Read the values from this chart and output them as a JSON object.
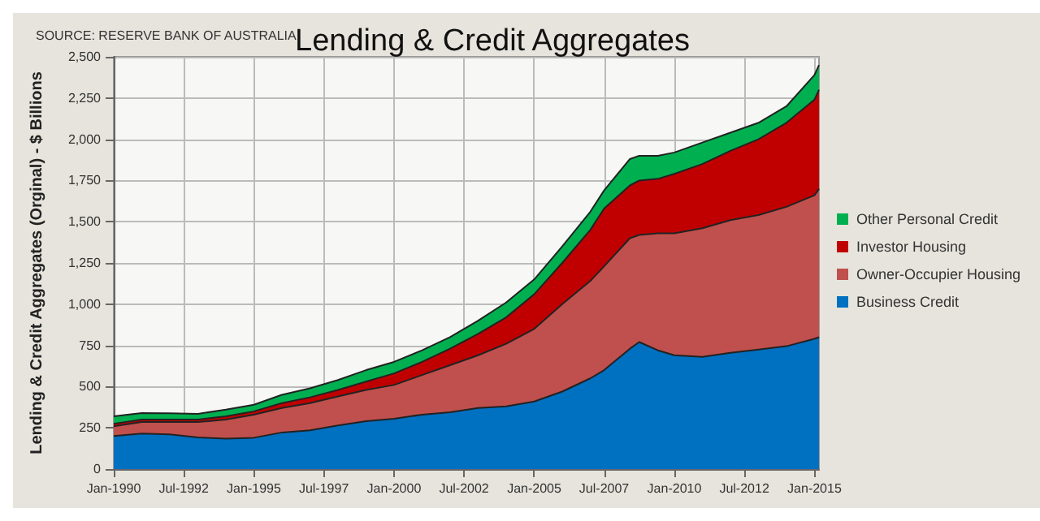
{
  "chart_data": {
    "type": "area",
    "title": "Lending & Credit Aggregates",
    "ylabel": "Lending & Credit Aggregates (Orginal) - $ Billions",
    "annotations": [
      "SOURCE: RESERVE BANK OF AUSTRALIA"
    ],
    "x": [
      "1990-01",
      "1991-01",
      "1992-01",
      "1993-01",
      "1994-01",
      "1995-01",
      "1996-01",
      "1997-01",
      "1998-01",
      "1999-01",
      "2000-01",
      "2001-01",
      "2002-01",
      "2003-01",
      "2004-01",
      "2005-01",
      "2006-01",
      "2007-01",
      "2007-07",
      "2008-06",
      "2008-10",
      "2009-06",
      "2010-01",
      "2011-01",
      "2012-01",
      "2013-01",
      "2014-01",
      "2015-01",
      "2015-03"
    ],
    "stacked": true,
    "series": [
      {
        "name": "Business Credit",
        "color": "#0070c0",
        "values": [
          200,
          215,
          210,
          192,
          185,
          190,
          222,
          235,
          265,
          290,
          305,
          330,
          345,
          370,
          380,
          410,
          470,
          550,
          600,
          730,
          770,
          720,
          690,
          680,
          705,
          725,
          745,
          790,
          800
        ]
      },
      {
        "name": "Owner-Occupier Housing",
        "color": "#c0504d",
        "values": [
          60,
          70,
          75,
          93,
          115,
          140,
          148,
          165,
          175,
          190,
          205,
          240,
          285,
          320,
          380,
          440,
          530,
          590,
          630,
          670,
          650,
          710,
          740,
          780,
          805,
          815,
          845,
          870,
          900
        ]
      },
      {
        "name": "Investor Housing",
        "color": "#c00000",
        "values": [
          15,
          15,
          15,
          15,
          20,
          20,
          30,
          35,
          40,
          50,
          70,
          80,
          100,
          130,
          160,
          210,
          250,
          310,
          350,
          320,
          330,
          330,
          360,
          390,
          420,
          460,
          510,
          580,
          600
        ]
      },
      {
        "name": "Other Personal Credit",
        "color": "#00b050",
        "values": [
          45,
          40,
          38,
          35,
          40,
          40,
          50,
          55,
          60,
          70,
          70,
          70,
          70,
          80,
          90,
          90,
          100,
          110,
          110,
          160,
          150,
          140,
          130,
          130,
          110,
          100,
          100,
          150,
          150
        ]
      }
    ],
    "xlim": [
      "1990-01",
      "2015-03"
    ],
    "xticks": [
      {
        "value": "1990-01",
        "label": "Jan-1990"
      },
      {
        "value": "1992-07",
        "label": "Jul-1992"
      },
      {
        "value": "1995-01",
        "label": "Jan-1995"
      },
      {
        "value": "1997-07",
        "label": "Jul-1997"
      },
      {
        "value": "2000-01",
        "label": "Jan-2000"
      },
      {
        "value": "2002-07",
        "label": "Jul-2002"
      },
      {
        "value": "2005-01",
        "label": "Jan-2005"
      },
      {
        "value": "2007-07",
        "label": "Jul-2007"
      },
      {
        "value": "2010-01",
        "label": "Jan-2010"
      },
      {
        "value": "2012-07",
        "label": "Jul-2012"
      },
      {
        "value": "2015-01",
        "label": "Jan-2015"
      }
    ],
    "ylim": [
      0,
      2500
    ],
    "yticks": [
      {
        "value": 0,
        "label": "0"
      },
      {
        "value": 250,
        "label": "250"
      },
      {
        "value": 500,
        "label": "500"
      },
      {
        "value": 750,
        "label": "750"
      },
      {
        "value": 1000,
        "label": "1,000"
      },
      {
        "value": 1250,
        "label": "1,250"
      },
      {
        "value": 1500,
        "label": "1,500"
      },
      {
        "value": 1750,
        "label": "1,750"
      },
      {
        "value": 2000,
        "label": "2,000"
      },
      {
        "value": 2250,
        "label": "2,250"
      },
      {
        "value": 2500,
        "label": "2,500"
      }
    ],
    "grid": true,
    "legend": "right"
  }
}
